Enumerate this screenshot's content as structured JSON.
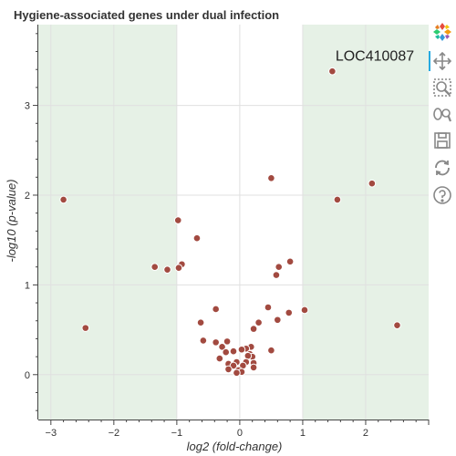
{
  "chart_data": {
    "type": "scatter",
    "title": "Hygiene-associated genes under dual infection",
    "xlabel": "log2 (fold-change)",
    "ylabel": "-log10 (p-value)",
    "xlim": [
      -3.2,
      3.0
    ],
    "ylim": [
      -0.5,
      3.9
    ],
    "xticks": [
      -3,
      -2,
      -1,
      0,
      1,
      2
    ],
    "yticks": [
      0,
      1,
      2,
      3
    ],
    "grid": true,
    "shaded_regions": [
      {
        "x": [
          -3.2,
          -1.0
        ],
        "color": "#e6f1e6"
      },
      {
        "x": [
          1.0,
          3.0
        ],
        "color": "#e6f1e6"
      }
    ],
    "point_color": "#a24a40",
    "annotations": [
      {
        "text": "LOC410087",
        "x": 1.52,
        "y": 3.5
      }
    ],
    "points": [
      {
        "x": 1.47,
        "y": 3.38
      },
      {
        "x": 0.5,
        "y": 2.19
      },
      {
        "x": 2.1,
        "y": 2.13
      },
      {
        "x": 1.55,
        "y": 1.95
      },
      {
        "x": -2.8,
        "y": 1.95
      },
      {
        "x": -0.98,
        "y": 1.72
      },
      {
        "x": -0.68,
        "y": 1.52
      },
      {
        "x": 0.8,
        "y": 1.26
      },
      {
        "x": -0.92,
        "y": 1.23
      },
      {
        "x": 0.62,
        "y": 1.2
      },
      {
        "x": -1.35,
        "y": 1.2
      },
      {
        "x": -0.97,
        "y": 1.19
      },
      {
        "x": -1.15,
        "y": 1.17
      },
      {
        "x": 0.58,
        "y": 1.11
      },
      {
        "x": 0.45,
        "y": 0.75
      },
      {
        "x": -0.38,
        "y": 0.73
      },
      {
        "x": 1.03,
        "y": 0.72
      },
      {
        "x": 0.78,
        "y": 0.69
      },
      {
        "x": 0.6,
        "y": 0.61
      },
      {
        "x": -0.62,
        "y": 0.58
      },
      {
        "x": 0.3,
        "y": 0.58
      },
      {
        "x": 2.5,
        "y": 0.55
      },
      {
        "x": -2.45,
        "y": 0.52
      },
      {
        "x": 0.22,
        "y": 0.51
      },
      {
        "x": -0.58,
        "y": 0.38
      },
      {
        "x": -0.38,
        "y": 0.36
      },
      {
        "x": -0.2,
        "y": 0.37
      },
      {
        "x": -0.28,
        "y": 0.31
      },
      {
        "x": 0.18,
        "y": 0.31
      },
      {
        "x": 0.1,
        "y": 0.29
      },
      {
        "x": 0.03,
        "y": 0.28
      },
      {
        "x": 0.5,
        "y": 0.27
      },
      {
        "x": -0.22,
        "y": 0.25
      },
      {
        "x": -0.1,
        "y": 0.26
      },
      {
        "x": 0.16,
        "y": 0.23
      },
      {
        "x": 0.2,
        "y": 0.2
      },
      {
        "x": 0.13,
        "y": 0.21
      },
      {
        "x": -0.32,
        "y": 0.18
      },
      {
        "x": 0.22,
        "y": 0.13
      },
      {
        "x": -0.18,
        "y": 0.12
      },
      {
        "x": -0.05,
        "y": 0.14
      },
      {
        "x": 0.1,
        "y": 0.14
      },
      {
        "x": -0.1,
        "y": 0.1
      },
      {
        "x": 0.05,
        "y": 0.1
      },
      {
        "x": 0.22,
        "y": 0.08
      },
      {
        "x": -0.18,
        "y": 0.06
      },
      {
        "x": -0.02,
        "y": 0.05
      },
      {
        "x": 0.03,
        "y": 0.03
      },
      {
        "x": -0.05,
        "y": 0.02
      }
    ]
  },
  "toolbar": {
    "tools": [
      {
        "name": "bokeh-logo-icon",
        "interactable": false
      },
      {
        "name": "pan-icon",
        "interactable": true,
        "active": true
      },
      {
        "name": "box-zoom-icon",
        "interactable": true
      },
      {
        "name": "wheel-zoom-icon",
        "interactable": true
      },
      {
        "name": "save-icon",
        "interactable": true
      },
      {
        "name": "reset-icon",
        "interactable": true
      },
      {
        "name": "help-icon",
        "interactable": true
      }
    ]
  }
}
